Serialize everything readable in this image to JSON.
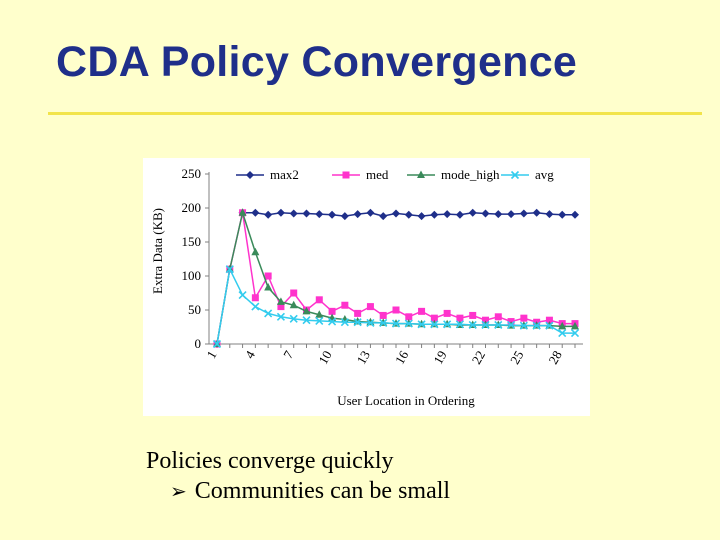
{
  "slide": {
    "title": "CDA Policy Convergence",
    "bullets": [
      "Policies converge quickly",
      "Communities can be small"
    ],
    "sub_bullet_marker": "➢"
  },
  "colors": {
    "background": "#ffffcc",
    "title": "#1f2f8a",
    "rule": "#f2e44a",
    "max2": "#1f2f8a",
    "med": "#ff33cc",
    "mode_high": "#3a8a5a",
    "avg": "#33ccee"
  },
  "chart_data": {
    "type": "line",
    "title": "",
    "xlabel": "User Location in Ordering",
    "ylabel": "Extra Data (KB)",
    "ylim": [
      0,
      250
    ],
    "yticks": [
      0,
      50,
      100,
      150,
      200,
      250
    ],
    "xticks": [
      1,
      4,
      7,
      10,
      13,
      16,
      19,
      22,
      25,
      28
    ],
    "xlim": [
      1,
      29
    ],
    "grid": false,
    "legend_position": "top",
    "x": [
      1,
      2,
      3,
      4,
      5,
      6,
      7,
      8,
      9,
      10,
      11,
      12,
      13,
      14,
      15,
      16,
      17,
      18,
      19,
      20,
      21,
      22,
      23,
      24,
      25,
      26,
      27,
      28,
      29
    ],
    "series": [
      {
        "name": "max2",
        "marker": "diamond",
        "values": [
          null,
          null,
          193,
          193,
          190,
          193,
          192,
          192,
          191,
          190,
          188,
          191,
          193,
          188,
          192,
          190,
          188,
          190,
          191,
          190,
          193,
          192,
          191,
          191,
          192,
          193,
          191,
          190,
          190
        ]
      },
      {
        "name": "med",
        "marker": "square",
        "values": [
          0,
          110,
          193,
          68,
          100,
          55,
          75,
          50,
          65,
          48,
          57,
          45,
          55,
          42,
          50,
          40,
          48,
          38,
          45,
          38,
          42,
          35,
          40,
          33,
          38,
          32,
          35,
          30,
          30
        ]
      },
      {
        "name": "mode_high",
        "marker": "triangle",
        "values": [
          0,
          110,
          193,
          135,
          83,
          62,
          57,
          48,
          43,
          38,
          36,
          33,
          32,
          31,
          30,
          30,
          29,
          29,
          29,
          28,
          28,
          28,
          28,
          27,
          27,
          27,
          27,
          26,
          26
        ]
      },
      {
        "name": "avg",
        "marker": "x",
        "values": [
          0,
          110,
          72,
          55,
          45,
          40,
          37,
          35,
          34,
          33,
          32,
          32,
          31,
          31,
          30,
          30,
          29,
          29,
          29,
          29,
          28,
          28,
          28,
          28,
          27,
          27,
          27,
          16,
          16
        ]
      }
    ]
  }
}
